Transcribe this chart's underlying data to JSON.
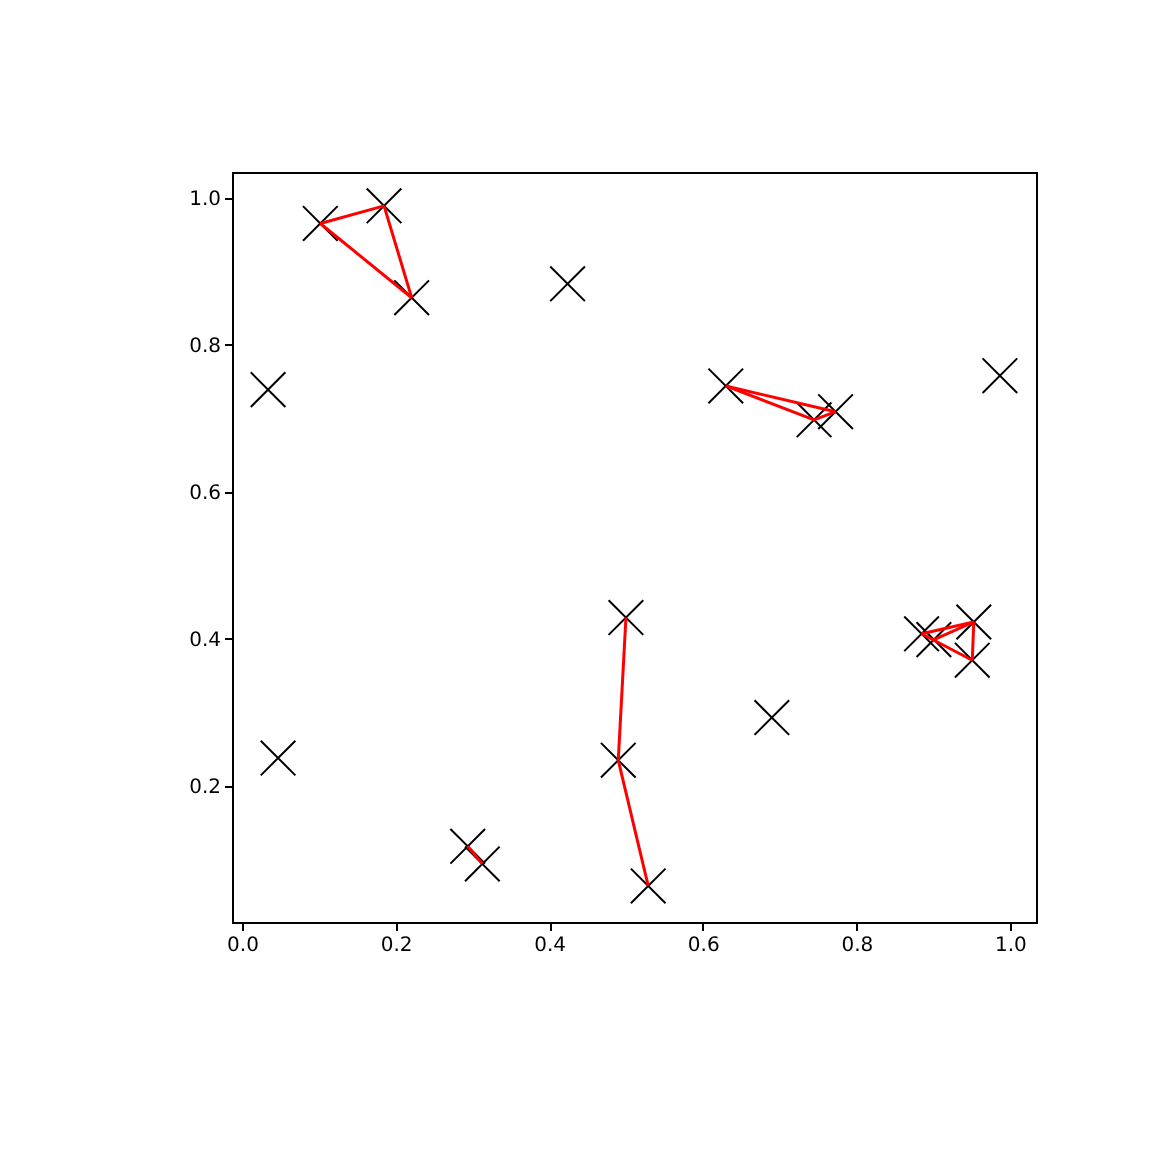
{
  "chart_data": {
    "type": "scatter",
    "marker": "cross",
    "grid": false,
    "xlim": [
      -0.013,
      1.034
    ],
    "ylim": [
      0.015,
      1.035
    ],
    "xticks": [
      {
        "value": 0,
        "label": "0.0"
      },
      0.2,
      0.4,
      0.6,
      0.8,
      {
        "value": 1,
        "label": "1.0"
      }
    ],
    "yticks": [
      0.2,
      0.4,
      0.6,
      0.8,
      {
        "value": 1,
        "label": "1.0"
      }
    ],
    "series": [
      {
        "color": "#000000",
        "x": [
          0.102,
          0.185,
          0.221,
          0.424,
          0.034,
          0.63,
          0.745,
          0.773,
          0.987,
          0.047,
          0.5,
          0.49,
          0.529,
          0.294,
          0.313,
          0.69,
          0.885,
          0.901,
          0.953,
          0.951
        ],
        "values": [
          0.965,
          0.989,
          0.864,
          0.883,
          0.739,
          0.744,
          0.698,
          0.709,
          0.758,
          0.238,
          0.429,
          0.235,
          0.064,
          0.118,
          0.094,
          0.293,
          0.407,
          0.399,
          0.423,
          0.371
        ]
      },
      {
        "type": "line",
        "marker": "none",
        "color": "#ff0000",
        "x": [
          0.102,
          0.185
        ],
        "values": [
          0.965,
          0.989
        ]
      },
      {
        "type": "line",
        "marker": "none",
        "color": "#ff0000",
        "x": [
          0.185,
          0.221
        ],
        "values": [
          0.989,
          0.864
        ]
      },
      {
        "type": "line",
        "marker": "none",
        "color": "#ff0000",
        "x": [
          0.102,
          0.221
        ],
        "values": [
          0.965,
          0.864
        ]
      },
      {
        "type": "line",
        "marker": "none",
        "color": "#ff0000",
        "x": [
          0.63,
          0.745
        ],
        "values": [
          0.744,
          0.698
        ]
      },
      {
        "type": "line",
        "marker": "none",
        "color": "#ff0000",
        "x": [
          0.745,
          0.773
        ],
        "values": [
          0.698,
          0.709
        ]
      },
      {
        "type": "line",
        "marker": "none",
        "color": "#ff0000",
        "x": [
          0.63,
          0.773
        ],
        "values": [
          0.744,
          0.709
        ]
      },
      {
        "type": "line",
        "marker": "none",
        "color": "#ff0000",
        "x": [
          0.49,
          0.5
        ],
        "values": [
          0.235,
          0.429
        ]
      },
      {
        "type": "line",
        "marker": "none",
        "color": "#ff0000",
        "x": [
          0.49,
          0.529
        ],
        "values": [
          0.235,
          0.064
        ]
      },
      {
        "type": "line",
        "marker": "none",
        "color": "#ff0000",
        "x": [
          0.294,
          0.313
        ],
        "values": [
          0.118,
          0.094
        ]
      },
      {
        "type": "line",
        "marker": "none",
        "color": "#ff0000",
        "x": [
          0.885,
          0.953
        ],
        "values": [
          0.407,
          0.423
        ]
      },
      {
        "type": "line",
        "marker": "none",
        "color": "#ff0000",
        "x": [
          0.951,
          0.953
        ],
        "values": [
          0.371,
          0.423
        ]
      },
      {
        "type": "line",
        "marker": "none",
        "color": "#ff0000",
        "x": [
          0.885,
          0.951
        ],
        "values": [
          0.407,
          0.371
        ]
      },
      {
        "type": "line",
        "marker": "none",
        "color": "#ff0000",
        "x": [
          0.901,
          0.953
        ],
        "values": [
          0.399,
          0.423
        ]
      }
    ]
  }
}
